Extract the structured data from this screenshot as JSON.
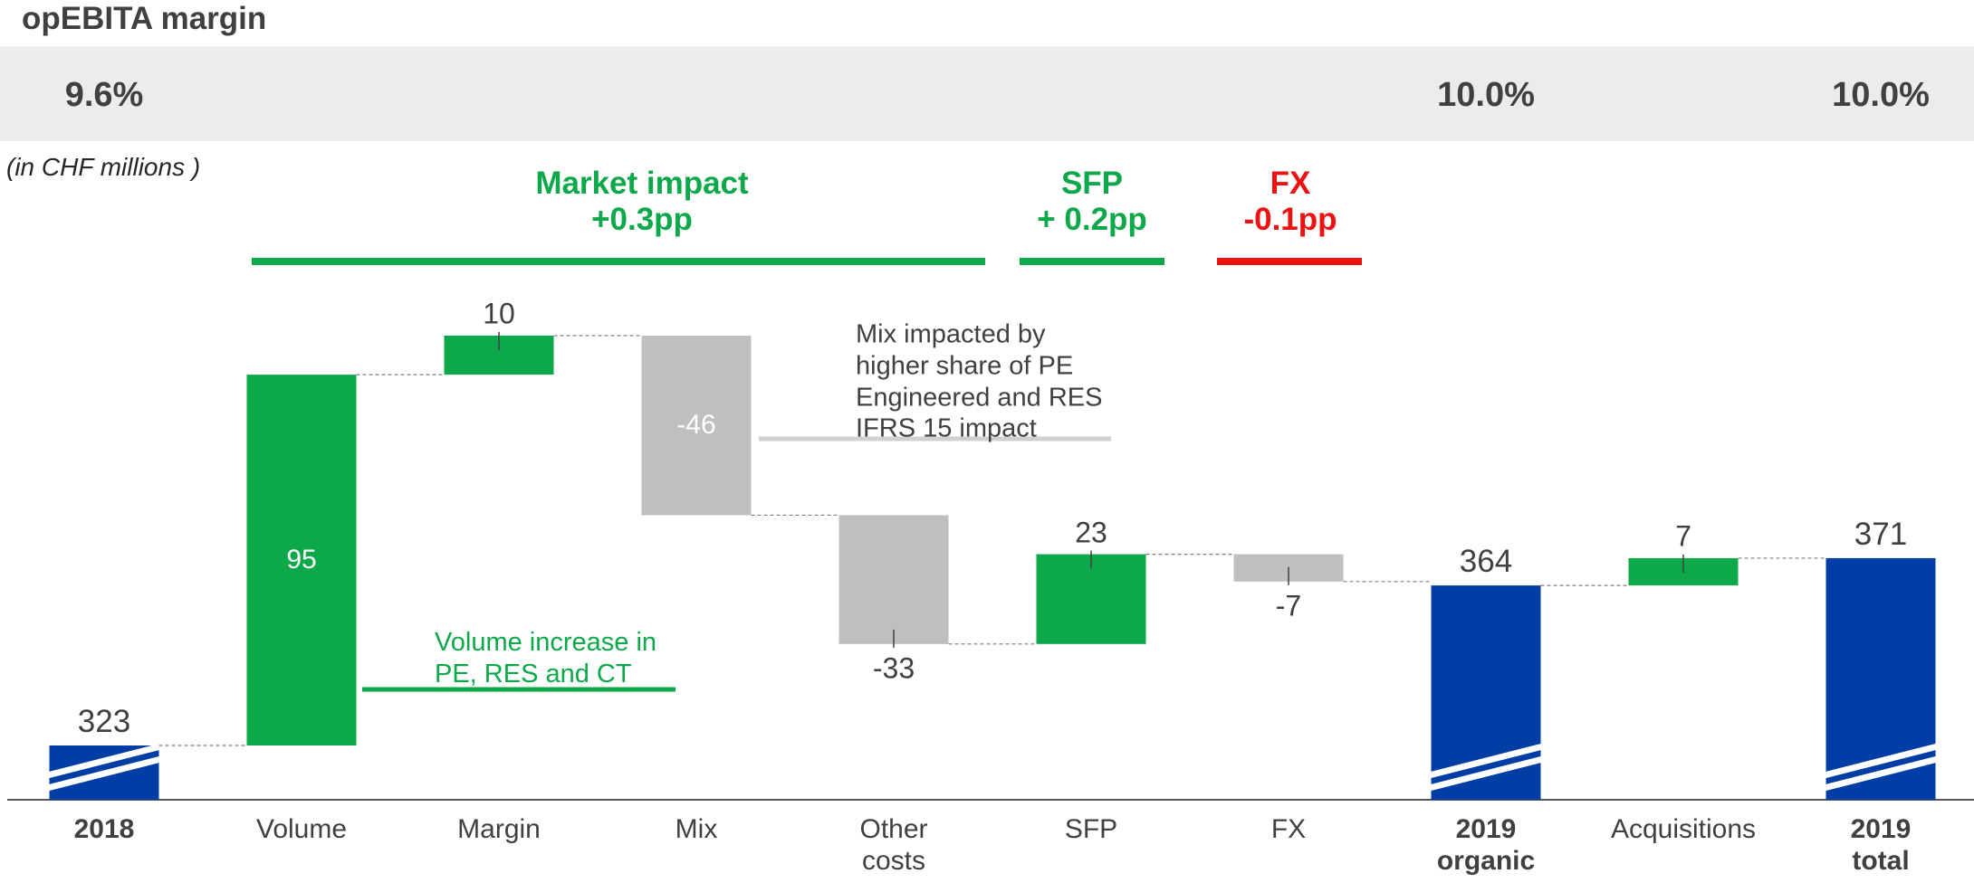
{
  "chart_data": {
    "type": "waterfall",
    "title": "opEBITA margin",
    "subtitle": "(in CHF millions )",
    "categories": [
      "2018",
      "Volume",
      "Margin",
      "Mix",
      "Other\ncosts",
      "SFP",
      "FX",
      "2019\norganic",
      "Acquisitions",
      "2019\ntotal"
    ],
    "values": [
      323,
      95,
      10,
      -46,
      -33,
      23,
      -7,
      364,
      7,
      371
    ],
    "is_total": [
      true,
      false,
      false,
      false,
      false,
      false,
      false,
      true,
      false,
      true
    ],
    "colors": [
      "#003da5",
      "#0ca84a",
      "#0ca84a",
      "#bfbfbf",
      "#bfbfbf",
      "#0ca84a",
      "#bfbfbf",
      "#003da5",
      "#0ca84a",
      "#003da5"
    ],
    "margin_row": {
      "values": [
        9.6,
        null,
        null,
        null,
        null,
        null,
        null,
        10.0,
        null,
        10.0
      ],
      "value_labels": [
        "9.6%",
        null,
        null,
        null,
        null,
        null,
        null,
        "10.0%",
        null,
        "10.0%"
      ]
    },
    "groups": [
      {
        "label": "Market impact\n+0.3pp",
        "color": "#0ca84a"
      },
      {
        "label": "SFP\n+ 0.2pp",
        "color": "#0ca84a"
      },
      {
        "label": "FX\n-0.1pp",
        "color": "#ee1111"
      }
    ],
    "annotations": [
      {
        "text": "Mix impacted by\nhigher share of PE\nEngineered and RES\nIFRS 15 impact",
        "color": "#404040"
      },
      {
        "text": "Volume increase in\nPE, RES and CT",
        "color": "#0ca84a"
      }
    ]
  }
}
